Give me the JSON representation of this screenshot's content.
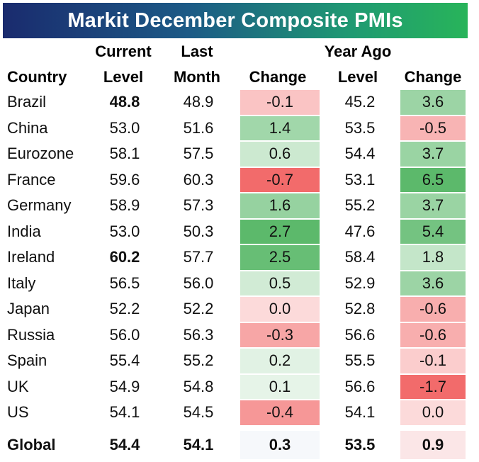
{
  "chart_data": {
    "type": "table",
    "title": "Markit December Composite PMIs",
    "columns": [
      "Country",
      "Current Level",
      "Last Month",
      "Change",
      "Year Ago Level",
      "Change"
    ],
    "header_top": {
      "current": "Current",
      "last": "Last",
      "yearago": "Year Ago"
    },
    "header_bottom": {
      "country": "Country",
      "current": "Level",
      "last": "Month",
      "change": "Change",
      "yearago": "Level",
      "change2": "Change"
    },
    "rows": [
      {
        "country": "Brazil",
        "current": "48.8",
        "last": "48.9",
        "change": "-0.1",
        "year_ago": "45.2",
        "change_ya": "3.6",
        "highlight": "low"
      },
      {
        "country": "China",
        "current": "53.0",
        "last": "51.6",
        "change": "1.4",
        "year_ago": "53.5",
        "change_ya": "-0.5"
      },
      {
        "country": "Eurozone",
        "current": "58.1",
        "last": "57.5",
        "change": "0.6",
        "year_ago": "54.4",
        "change_ya": "3.7"
      },
      {
        "country": "France",
        "current": "59.6",
        "last": "60.3",
        "change": "-0.7",
        "year_ago": "53.1",
        "change_ya": "6.5"
      },
      {
        "country": "Germany",
        "current": "58.9",
        "last": "57.3",
        "change": "1.6",
        "year_ago": "55.2",
        "change_ya": "3.7"
      },
      {
        "country": "India",
        "current": "53.0",
        "last": "50.3",
        "change": "2.7",
        "year_ago": "47.6",
        "change_ya": "5.4"
      },
      {
        "country": "Ireland",
        "current": "60.2",
        "last": "57.7",
        "change": "2.5",
        "year_ago": "58.4",
        "change_ya": "1.8",
        "highlight": "high"
      },
      {
        "country": "Italy",
        "current": "56.5",
        "last": "56.0",
        "change": "0.5",
        "year_ago": "52.9",
        "change_ya": "3.6"
      },
      {
        "country": "Japan",
        "current": "52.2",
        "last": "52.2",
        "change": "0.0",
        "year_ago": "52.8",
        "change_ya": "-0.6"
      },
      {
        "country": "Russia",
        "current": "56.0",
        "last": "56.3",
        "change": "-0.3",
        "year_ago": "56.6",
        "change_ya": "-0.6"
      },
      {
        "country": "Spain",
        "current": "55.4",
        "last": "55.2",
        "change": "0.2",
        "year_ago": "55.5",
        "change_ya": "-0.1"
      },
      {
        "country": "UK",
        "current": "54.9",
        "last": "54.8",
        "change": "0.1",
        "year_ago": "56.6",
        "change_ya": "-1.7"
      },
      {
        "country": "US",
        "current": "54.1",
        "last": "54.5",
        "change": "-0.4",
        "year_ago": "54.1",
        "change_ya": "0.0"
      }
    ],
    "global": {
      "country": "Global",
      "current": "54.4",
      "last": "54.1",
      "change": "0.3",
      "year_ago": "53.5",
      "change_ya": "0.9"
    },
    "colors": {
      "highlight_low": "#e8161c",
      "highlight_high": "#16a33a",
      "heat_negative_max": "#f26b6b",
      "heat_positive_max": "#5cb96b",
      "heat_neutral": "#ffffff"
    }
  }
}
